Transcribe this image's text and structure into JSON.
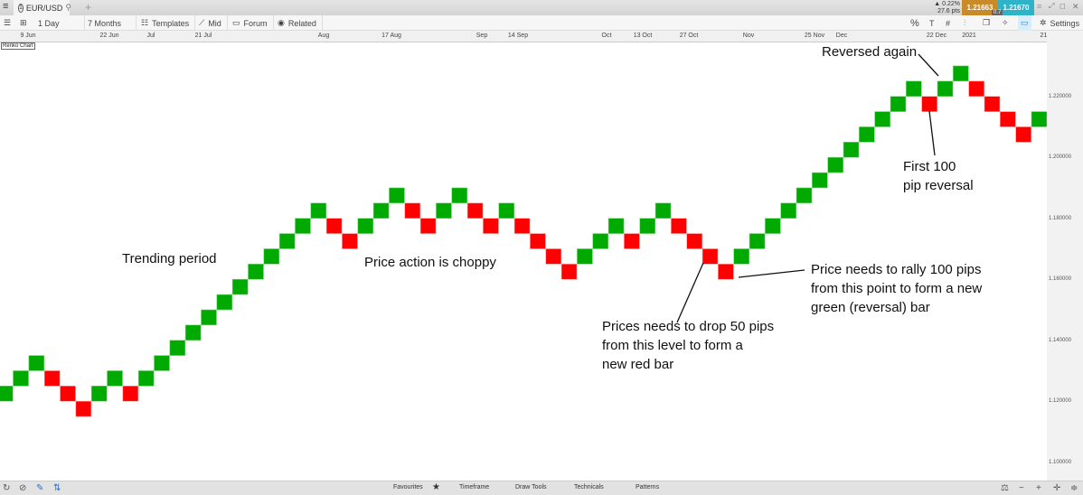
{
  "header": {
    "menu_icon": "hamburger-icon",
    "tab_number": "1",
    "tab_symbol": "EUR/USD",
    "add_tab": "+",
    "change_pct": "▲ 0.22%",
    "change_pts": "27.6 pts",
    "bid": "1.21663",
    "ask": "1.21670",
    "spread": "0.7",
    "bid_color": "#c98a2a",
    "ask_color": "#2fb3c9"
  },
  "toolbar": {
    "interval": "1 Day",
    "range": "7 Months",
    "templates": "Templates",
    "price_type": "Mid",
    "forum": "Forum",
    "related": "Related",
    "percent": "%",
    "settings": "Settings"
  },
  "chart_label": "Renko Chart",
  "bottom": {
    "favourites": "Favourites",
    "timeframe": "Timeframe",
    "draw_tools": "Draw Tools",
    "technicals": "Technicals",
    "patterns": "Patterns"
  },
  "annotations": {
    "trending": "Trending period",
    "choppy": "Price action is choppy",
    "reversed": "Reversed again",
    "first_reversal": [
      "First 100",
      "pip reversal"
    ],
    "rally": [
      "Price needs to rally 100 pips",
      "from this point to form a new",
      "green (reversal) bar"
    ],
    "drop": [
      "Prices needs to drop 50 pips",
      "from this level to form a",
      "new red bar"
    ]
  },
  "chart_data": {
    "type": "renko",
    "brick_size": 0.005,
    "colors": {
      "up": "#00aa00",
      "down": "#ff0000"
    },
    "x_tick_labels": [
      "9 Jun",
      "22 Jun",
      "Jul",
      "21 Jul",
      "Aug",
      "17 Aug",
      "Sep",
      "14 Sep",
      "Oct",
      "13 Oct",
      "27 Oct",
      "Nov",
      "25 Nov",
      "Dec",
      "22 Dec",
      "2021",
      "21 Jan"
    ],
    "y_ticks": [
      "1.220000",
      "1.200000",
      "1.180000",
      "1.160000",
      "1.140000",
      "1.120000",
      "1.100000"
    ],
    "ylim": [
      1.095,
      1.235
    ],
    "grid": false,
    "bricks_low": [
      1.12,
      1.125,
      1.13,
      1.125,
      1.12,
      1.115,
      1.12,
      1.125,
      1.12,
      1.125,
      1.13,
      1.135,
      1.14,
      1.145,
      1.15,
      1.155,
      1.16,
      1.165,
      1.17,
      1.175,
      1.18,
      1.175,
      1.17,
      1.175,
      1.18,
      1.185,
      1.18,
      1.175,
      1.18,
      1.185,
      1.18,
      1.175,
      1.18,
      1.175,
      1.17,
      1.165,
      1.16,
      1.165,
      1.17,
      1.175,
      1.17,
      1.175,
      1.18,
      1.175,
      1.17,
      1.165,
      1.16,
      1.165,
      1.17,
      1.175,
      1.18,
      1.185,
      1.19,
      1.195,
      1.2,
      1.205,
      1.21,
      1.215,
      1.22,
      1.215,
      1.22,
      1.225,
      1.22,
      1.215,
      1.21,
      1.205,
      1.21
    ],
    "bricks_dir": [
      "up",
      "up",
      "up",
      "down",
      "down",
      "down",
      "up",
      "up",
      "down",
      "up",
      "up",
      "up",
      "up",
      "up",
      "up",
      "up",
      "up",
      "up",
      "up",
      "up",
      "up",
      "down",
      "down",
      "up",
      "up",
      "up",
      "down",
      "down",
      "up",
      "up",
      "down",
      "down",
      "up",
      "down",
      "down",
      "down",
      "down",
      "up",
      "up",
      "up",
      "down",
      "up",
      "up",
      "down",
      "down",
      "down",
      "down",
      "up",
      "up",
      "up",
      "up",
      "up",
      "up",
      "up",
      "up",
      "up",
      "up",
      "up",
      "up",
      "down",
      "up",
      "up",
      "down",
      "down",
      "down",
      "down",
      "up"
    ]
  }
}
